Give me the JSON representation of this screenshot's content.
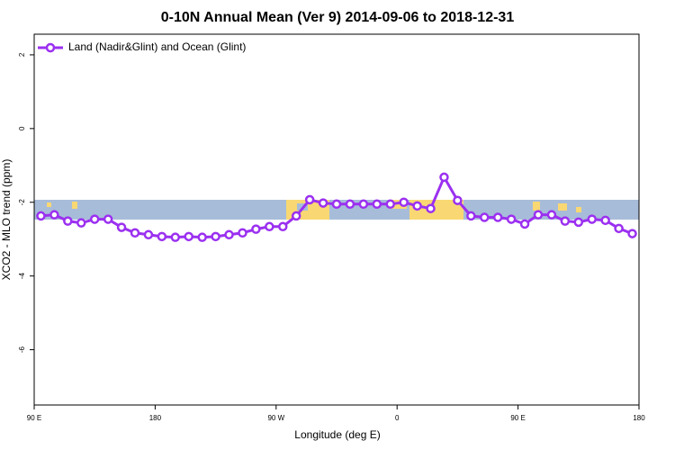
{
  "chart_data": {
    "type": "line",
    "title": "0-10N Annual Mean (Ver 9)   2014-09-06 to 2018-12-31",
    "x_label": "Longitude (deg E)",
    "y_label": "XCO2 - MLO trend (ppm)",
    "legend_position": "top-left",
    "x": [
      95,
      105,
      115,
      125,
      135,
      145,
      155,
      165,
      175,
      185,
      195,
      205,
      215,
      225,
      235,
      245,
      255,
      265,
      275,
      285,
      295,
      305,
      315,
      325,
      335,
      345,
      355,
      365,
      375,
      385,
      395,
      405,
      415,
      425,
      435,
      445,
      455,
      465,
      475,
      485,
      495,
      505,
      515,
      525,
      535
    ],
    "series": [
      {
        "name": "Land (Nadir&Glint) and Ocean (Glint)",
        "color": "#9b30f0",
        "values": [
          -2.37,
          -2.34,
          -2.51,
          -2.56,
          -2.46,
          -2.46,
          -2.68,
          -2.83,
          -2.88,
          -2.93,
          -2.95,
          -2.93,
          -2.95,
          -2.93,
          -2.88,
          -2.83,
          -2.73,
          -2.66,
          -2.66,
          -2.37,
          -1.93,
          -2.02,
          -2.05,
          -2.05,
          -2.05,
          -2.05,
          -2.05,
          -2.0,
          -2.1,
          -2.17,
          -1.32,
          -1.95,
          -2.37,
          -2.41,
          -2.41,
          -2.46,
          -2.59,
          -2.34,
          -2.34,
          -2.51,
          -2.54,
          -2.46,
          -2.49,
          -2.71,
          -2.85
        ]
      }
    ],
    "xlim": [
      90,
      540
    ],
    "xticks": [
      {
        "value": 90,
        "label": "90 E"
      },
      {
        "value": 180,
        "label": "180"
      },
      {
        "value": 270,
        "label": "90 W"
      },
      {
        "value": 360,
        "label": "0"
      },
      {
        "value": 450,
        "label": "90 E"
      },
      {
        "value": 540,
        "label": "180"
      }
    ],
    "ylim": [
      -7.5,
      2.56
    ],
    "yticks": [
      2,
      0,
      -2,
      -4,
      -6
    ]
  }
}
